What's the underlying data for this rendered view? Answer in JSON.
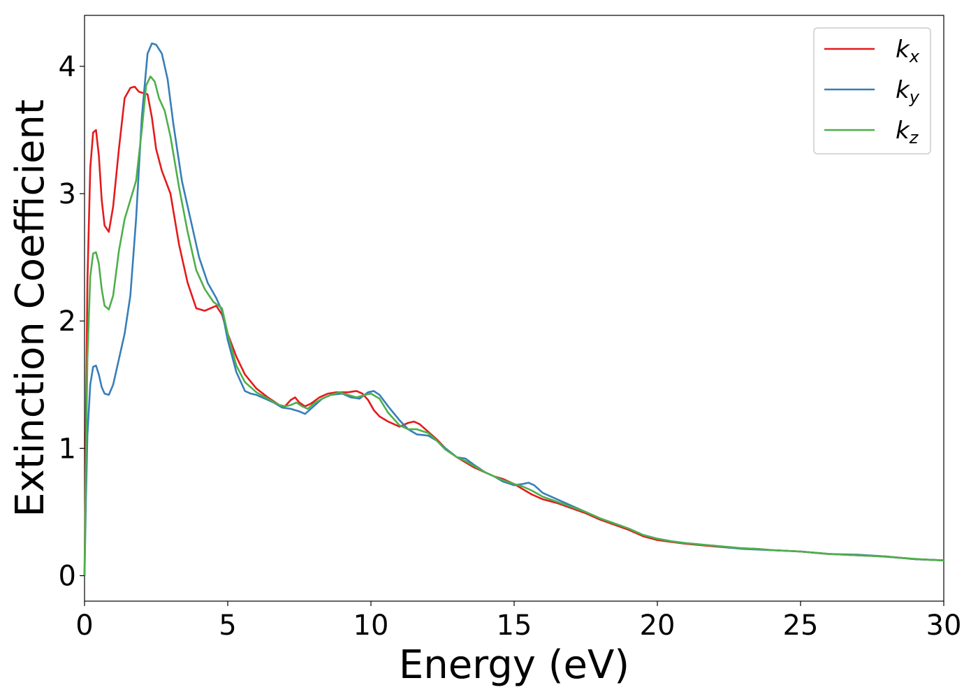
{
  "chart_data": {
    "type": "line",
    "xlabel": "Energy (eV)",
    "ylabel": "Extinction Coefficient",
    "xlim": [
      0,
      30
    ],
    "ylim": [
      -0.2,
      4.4
    ],
    "x_ticks": [
      0,
      5,
      10,
      15,
      20,
      25,
      30
    ],
    "y_ticks": [
      0,
      1,
      2,
      3,
      4
    ],
    "x_tick_labels": [
      "0",
      "5",
      "10",
      "15",
      "20",
      "25",
      "30"
    ],
    "y_tick_labels": [
      "0",
      "1",
      "2",
      "3",
      "4"
    ],
    "grid": false,
    "legend_position": "top-right",
    "series": [
      {
        "name": "kx",
        "legend_main": "k",
        "legend_sub": "x",
        "color": "#e41a1c",
        "x": [
          0,
          0.05,
          0.1,
          0.2,
          0.3,
          0.4,
          0.5,
          0.6,
          0.7,
          0.85,
          1.0,
          1.2,
          1.4,
          1.6,
          1.75,
          1.9,
          2.05,
          2.2,
          2.35,
          2.5,
          2.7,
          3.0,
          3.3,
          3.6,
          3.9,
          4.2,
          4.4,
          4.6,
          4.8,
          5.0,
          5.3,
          5.6,
          6.0,
          6.4,
          6.8,
          7.0,
          7.2,
          7.35,
          7.5,
          7.7,
          7.9,
          8.2,
          8.5,
          8.8,
          9.0,
          9.2,
          9.5,
          9.7,
          9.9,
          10.1,
          10.3,
          10.6,
          11.0,
          11.3,
          11.5,
          11.7,
          12.0,
          12.3,
          12.6,
          13.0,
          13.3,
          13.6,
          14.0,
          14.3,
          14.6,
          15.0,
          15.3,
          15.6,
          16.0,
          16.5,
          17.0,
          17.5,
          18.0,
          18.5,
          19.0,
          19.5,
          20.0,
          20.5,
          21.0,
          21.5,
          22.0,
          22.5,
          23.0,
          23.5,
          24.0,
          24.5,
          25.0,
          25.5,
          26.0,
          26.5,
          27.0,
          27.5,
          28.0,
          28.5,
          29.0,
          29.5,
          30.0
        ],
        "y": [
          0.0,
          1.2,
          2.3,
          3.2,
          3.48,
          3.5,
          3.3,
          2.95,
          2.75,
          2.7,
          2.9,
          3.35,
          3.75,
          3.83,
          3.84,
          3.8,
          3.79,
          3.78,
          3.6,
          3.35,
          3.18,
          3.0,
          2.6,
          2.3,
          2.1,
          2.08,
          2.1,
          2.12,
          2.05,
          1.9,
          1.72,
          1.58,
          1.47,
          1.4,
          1.34,
          1.33,
          1.38,
          1.4,
          1.36,
          1.33,
          1.35,
          1.4,
          1.43,
          1.44,
          1.44,
          1.44,
          1.45,
          1.43,
          1.38,
          1.3,
          1.25,
          1.21,
          1.17,
          1.2,
          1.21,
          1.19,
          1.13,
          1.07,
          1.0,
          0.93,
          0.89,
          0.85,
          0.81,
          0.78,
          0.76,
          0.72,
          0.68,
          0.64,
          0.6,
          0.57,
          0.53,
          0.49,
          0.44,
          0.4,
          0.36,
          0.31,
          0.28,
          0.265,
          0.25,
          0.24,
          0.23,
          0.22,
          0.215,
          0.21,
          0.2,
          0.195,
          0.19,
          0.18,
          0.17,
          0.165,
          0.16,
          0.155,
          0.15,
          0.14,
          0.13,
          0.125,
          0.12
        ]
      },
      {
        "name": "ky",
        "legend_main": "k",
        "legend_sub": "y",
        "color": "#377eb8",
        "x": [
          0,
          0.05,
          0.1,
          0.2,
          0.3,
          0.4,
          0.5,
          0.6,
          0.7,
          0.85,
          1.0,
          1.2,
          1.4,
          1.6,
          1.8,
          2.0,
          2.2,
          2.35,
          2.5,
          2.7,
          2.9,
          3.1,
          3.4,
          3.7,
          4.0,
          4.3,
          4.6,
          4.8,
          5.0,
          5.3,
          5.6,
          5.8,
          6.0,
          6.3,
          6.6,
          6.9,
          7.2,
          7.5,
          7.7,
          8.0,
          8.3,
          8.6,
          9.0,
          9.3,
          9.6,
          9.9,
          10.1,
          10.3,
          10.6,
          11.0,
          11.3,
          11.6,
          12.0,
          12.3,
          12.6,
          13.0,
          13.3,
          13.6,
          14.0,
          14.3,
          14.6,
          15.0,
          15.3,
          15.5,
          15.7,
          16.0,
          16.5,
          17.0,
          17.5,
          18.0,
          18.5,
          19.0,
          19.5,
          20.0,
          20.5,
          21.0,
          21.5,
          22.0,
          22.5,
          23.0,
          23.5,
          24.0,
          24.5,
          25.0,
          25.5,
          26.0,
          26.5,
          27.0,
          27.5,
          28.0,
          28.5,
          29.0,
          29.5,
          30.0
        ],
        "y": [
          0.0,
          0.6,
          1.1,
          1.5,
          1.64,
          1.65,
          1.58,
          1.48,
          1.43,
          1.42,
          1.5,
          1.7,
          1.9,
          2.2,
          2.8,
          3.6,
          4.1,
          4.18,
          4.17,
          4.1,
          3.9,
          3.55,
          3.1,
          2.8,
          2.5,
          2.3,
          2.18,
          2.08,
          1.85,
          1.6,
          1.45,
          1.43,
          1.42,
          1.39,
          1.36,
          1.32,
          1.31,
          1.29,
          1.27,
          1.33,
          1.39,
          1.42,
          1.43,
          1.4,
          1.39,
          1.44,
          1.45,
          1.42,
          1.33,
          1.22,
          1.15,
          1.11,
          1.1,
          1.06,
          1.0,
          0.93,
          0.92,
          0.87,
          0.81,
          0.78,
          0.74,
          0.71,
          0.72,
          0.73,
          0.71,
          0.65,
          0.6,
          0.55,
          0.5,
          0.45,
          0.41,
          0.37,
          0.32,
          0.29,
          0.27,
          0.255,
          0.245,
          0.235,
          0.22,
          0.21,
          0.205,
          0.2,
          0.195,
          0.19,
          0.18,
          0.17,
          0.168,
          0.165,
          0.158,
          0.15,
          0.14,
          0.13,
          0.125,
          0.12
        ]
      },
      {
        "name": "kz",
        "legend_main": "k",
        "legend_sub": "z",
        "color": "#4daf4a",
        "x": [
          0,
          0.05,
          0.1,
          0.2,
          0.3,
          0.4,
          0.5,
          0.6,
          0.7,
          0.85,
          1.0,
          1.2,
          1.4,
          1.6,
          1.8,
          2.0,
          2.15,
          2.3,
          2.45,
          2.6,
          2.8,
          3.0,
          3.3,
          3.6,
          3.9,
          4.2,
          4.5,
          4.8,
          5.0,
          5.3,
          5.6,
          6.0,
          6.4,
          6.8,
          7.0,
          7.2,
          7.4,
          7.6,
          7.8,
          8.0,
          8.3,
          8.6,
          8.9,
          9.2,
          9.5,
          9.8,
          10.0,
          10.3,
          10.6,
          11.0,
          11.3,
          11.6,
          12.0,
          12.3,
          12.6,
          13.0,
          13.3,
          13.6,
          14.0,
          14.3,
          14.6,
          15.0,
          15.3,
          15.6,
          16.0,
          16.5,
          17.0,
          17.5,
          18.0,
          18.5,
          19.0,
          19.5,
          20.0,
          20.5,
          21.0,
          21.5,
          22.0,
          22.5,
          23.0,
          23.5,
          24.0,
          24.5,
          25.0,
          25.5,
          26.0,
          26.5,
          27.0,
          27.5,
          28.0,
          28.5,
          29.0,
          29.5,
          30.0
        ],
        "y": [
          0.0,
          0.9,
          1.7,
          2.35,
          2.53,
          2.54,
          2.45,
          2.25,
          2.12,
          2.09,
          2.2,
          2.55,
          2.8,
          2.95,
          3.1,
          3.5,
          3.85,
          3.92,
          3.88,
          3.75,
          3.65,
          3.45,
          3.05,
          2.7,
          2.4,
          2.25,
          2.15,
          2.1,
          1.9,
          1.65,
          1.52,
          1.44,
          1.39,
          1.34,
          1.33,
          1.34,
          1.36,
          1.33,
          1.31,
          1.35,
          1.39,
          1.42,
          1.44,
          1.42,
          1.4,
          1.42,
          1.43,
          1.39,
          1.28,
          1.18,
          1.15,
          1.15,
          1.12,
          1.06,
          0.99,
          0.93,
          0.9,
          0.86,
          0.81,
          0.78,
          0.75,
          0.72,
          0.7,
          0.67,
          0.62,
          0.58,
          0.54,
          0.5,
          0.45,
          0.41,
          0.37,
          0.32,
          0.29,
          0.27,
          0.255,
          0.245,
          0.235,
          0.225,
          0.215,
          0.21,
          0.2,
          0.195,
          0.19,
          0.18,
          0.17,
          0.165,
          0.16,
          0.155,
          0.148,
          0.14,
          0.132,
          0.125,
          0.12
        ]
      }
    ]
  }
}
